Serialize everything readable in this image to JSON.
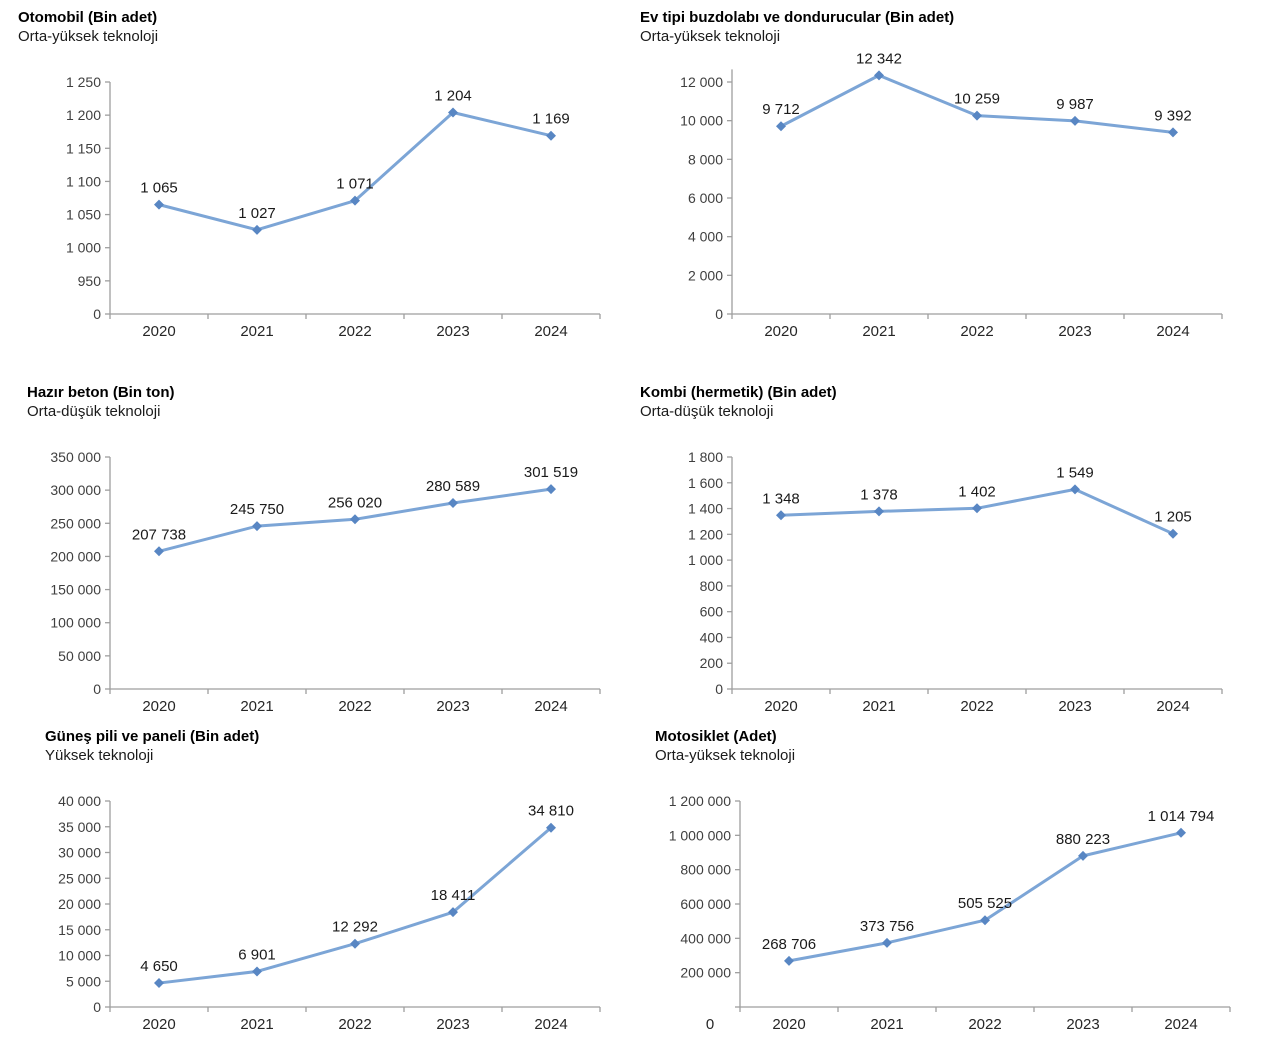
{
  "style": {
    "background": "#FFFFFF",
    "line_color": "#7CA5D6",
    "marker_color": "#5886C3",
    "axis_color": "#9E9E9E",
    "tick_label_color": "#3F3F3F",
    "x_label_color": "#262626",
    "data_label_color": "#1A1A1A",
    "title_color": "#000000"
  },
  "chart_data": [
    {
      "type": "line",
      "title": "Otomobil (Bin adet)",
      "subtitle": "Orta-yüksek teknoloji",
      "categories": [
        "2020",
        "2021",
        "2022",
        "2023",
        "2024"
      ],
      "values": [
        1065,
        1027,
        1071,
        1204,
        1169
      ],
      "data_labels": [
        "1 065",
        "1 027",
        "1 071",
        "1 204",
        "1 169"
      ],
      "y_ticks": [
        {
          "value": 0,
          "label": "0"
        },
        {
          "value": 950,
          "label": "950"
        },
        {
          "value": 1000,
          "label": "1 000"
        },
        {
          "value": 1050,
          "label": "1 050"
        },
        {
          "value": 1100,
          "label": "1 100"
        },
        {
          "value": 1150,
          "label": "1 150"
        },
        {
          "value": 1200,
          "label": "1 200"
        },
        {
          "value": 1250,
          "label": "1 250"
        }
      ],
      "ylim": [
        0,
        1250
      ],
      "axis_break_after_zero": true,
      "grid": false,
      "legend": "none",
      "marker": "diamond"
    },
    {
      "type": "line",
      "title": "Ev tipi buzdolabı ve dondurucular (Bin adet)",
      "subtitle": "Orta-yüksek teknoloji",
      "categories": [
        "2020",
        "2021",
        "2022",
        "2023",
        "2024"
      ],
      "values": [
        9712,
        12342,
        10259,
        9987,
        9392
      ],
      "data_labels": [
        "9 712",
        "12 342",
        "10 259",
        "9 987",
        "9 392"
      ],
      "y_ticks": [
        {
          "value": 0,
          "label": "0"
        },
        {
          "value": 2000,
          "label": "2 000"
        },
        {
          "value": 4000,
          "label": "4 000"
        },
        {
          "value": 6000,
          "label": "6 000"
        },
        {
          "value": 8000,
          "label": "8 000"
        },
        {
          "value": 10000,
          "label": "10 000"
        },
        {
          "value": 12000,
          "label": "12 000"
        }
      ],
      "ylim": [
        0,
        12000
      ],
      "grid": false,
      "legend": "none",
      "marker": "diamond"
    },
    {
      "type": "line",
      "title": "Hazır beton (Bin ton)",
      "subtitle": "Orta-düşük teknoloji",
      "categories": [
        "2020",
        "2021",
        "2022",
        "2023",
        "2024"
      ],
      "values": [
        207738,
        245750,
        256020,
        280589,
        301519
      ],
      "data_labels": [
        "207 738",
        "245 750",
        "256 020",
        "280 589",
        "301 519"
      ],
      "y_ticks": [
        {
          "value": 0,
          "label": "0"
        },
        {
          "value": 50000,
          "label": "50 000"
        },
        {
          "value": 100000,
          "label": "100 000"
        },
        {
          "value": 150000,
          "label": "150 000"
        },
        {
          "value": 200000,
          "label": "200 000"
        },
        {
          "value": 250000,
          "label": "250 000"
        },
        {
          "value": 300000,
          "label": "300 000"
        },
        {
          "value": 350000,
          "label": "350 000"
        }
      ],
      "ylim": [
        0,
        350000
      ],
      "grid": false,
      "legend": "none",
      "marker": "diamond"
    },
    {
      "type": "line",
      "title": "Kombi (hermetik) (Bin adet)",
      "subtitle": "Orta-düşük teknoloji",
      "categories": [
        "2020",
        "2021",
        "2022",
        "2023",
        "2024"
      ],
      "values": [
        1348,
        1378,
        1402,
        1549,
        1205
      ],
      "data_labels": [
        "1 348",
        "1 378",
        "1 402",
        "1 549",
        "1 205"
      ],
      "y_ticks": [
        {
          "value": 0,
          "label": "0"
        },
        {
          "value": 200,
          "label": "200"
        },
        {
          "value": 400,
          "label": "400"
        },
        {
          "value": 600,
          "label": "600"
        },
        {
          "value": 800,
          "label": "800"
        },
        {
          "value": 1000,
          "label": "1 000"
        },
        {
          "value": 1200,
          "label": "1 200"
        },
        {
          "value": 1400,
          "label": "1 400"
        },
        {
          "value": 1600,
          "label": "1 600"
        },
        {
          "value": 1800,
          "label": "1 800"
        }
      ],
      "ylim": [
        0,
        1800
      ],
      "grid": false,
      "legend": "none",
      "marker": "diamond"
    },
    {
      "type": "line",
      "title": "Güneş pili ve paneli (Bin adet)",
      "subtitle": "Yüksek teknoloji",
      "categories": [
        "2020",
        "2021",
        "2022",
        "2023",
        "2024"
      ],
      "values": [
        4650,
        6901,
        12292,
        18411,
        34810
      ],
      "data_labels": [
        "4 650",
        "6 901",
        "12 292",
        "18 411",
        "34 810"
      ],
      "y_ticks": [
        {
          "value": 0,
          "label": "0"
        },
        {
          "value": 5000,
          "label": "5 000"
        },
        {
          "value": 10000,
          "label": "10 000"
        },
        {
          "value": 15000,
          "label": "15 000"
        },
        {
          "value": 20000,
          "label": "20 000"
        },
        {
          "value": 25000,
          "label": "25 000"
        },
        {
          "value": 30000,
          "label": "30 000"
        },
        {
          "value": 35000,
          "label": "35 000"
        },
        {
          "value": 40000,
          "label": "40 000"
        }
      ],
      "ylim": [
        0,
        40000
      ],
      "grid": false,
      "legend": "none",
      "marker": "diamond"
    },
    {
      "type": "line",
      "title": "Motosiklet (Adet)",
      "subtitle": "Orta-yüksek teknoloji",
      "categories": [
        "2020",
        "2021",
        "2022",
        "2023",
        "2024"
      ],
      "values": [
        268706,
        373756,
        505525,
        880223,
        1014794
      ],
      "data_labels": [
        "268 706",
        "373 756",
        "505 525",
        "880 223",
        "1 014 794"
      ],
      "y_ticks": [
        {
          "value": 0,
          "label": ""
        },
        {
          "value": 200000,
          "label": "200 000"
        },
        {
          "value": 400000,
          "label": "400 000"
        },
        {
          "value": 600000,
          "label": "600 000"
        },
        {
          "value": 800000,
          "label": "800 000"
        },
        {
          "value": 1000000,
          "label": "1 000 000"
        },
        {
          "value": 1200000,
          "label": "1 200 000"
        }
      ],
      "x_row_zero_label": "0",
      "ylim": [
        0,
        1200000
      ],
      "grid": false,
      "legend": "none",
      "marker": "diamond"
    }
  ]
}
